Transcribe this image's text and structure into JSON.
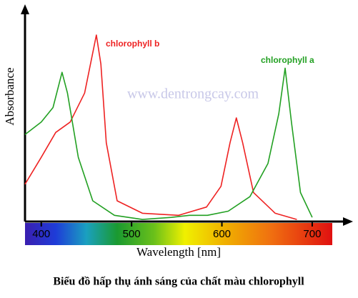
{
  "chart_data": {
    "type": "line",
    "caption": "Biểu đồ hấp thụ ánh sáng của chất màu chlorophyll",
    "x_label": "Wavelength [nm]",
    "y_label": "Absorbance",
    "watermark": "www.dentrongcay.com",
    "xlim": [
      382,
      742
    ],
    "xticks": [
      400,
      500,
      600,
      700
    ],
    "ylim": [
      0,
      100
    ],
    "series": [
      {
        "name": "chlorophyll b",
        "color": "#ee2222",
        "x": [
          382,
          400,
          416,
          432,
          448,
          461,
          466,
          472,
          484,
          512,
          552,
          583,
          599,
          609,
          616,
          623,
          635,
          659,
          683
        ],
        "values": [
          18,
          31,
          43,
          48,
          62,
          90,
          76,
          38,
          10,
          4,
          3,
          7,
          17,
          38,
          50,
          38,
          14,
          4,
          1
        ]
      },
      {
        "name": "chlorophyll a",
        "color": "#22a022",
        "x": [
          382,
          400,
          413,
          423,
          429,
          441,
          457,
          481,
          512,
          544,
          564,
          584,
          607,
          631,
          651,
          663,
          670,
          677,
          687,
          700
        ],
        "values": [
          42,
          48,
          55,
          72,
          62,
          31,
          10,
          3,
          1,
          2,
          3,
          3,
          5,
          12,
          28,
          52,
          74,
          48,
          14,
          2
        ]
      }
    ]
  }
}
